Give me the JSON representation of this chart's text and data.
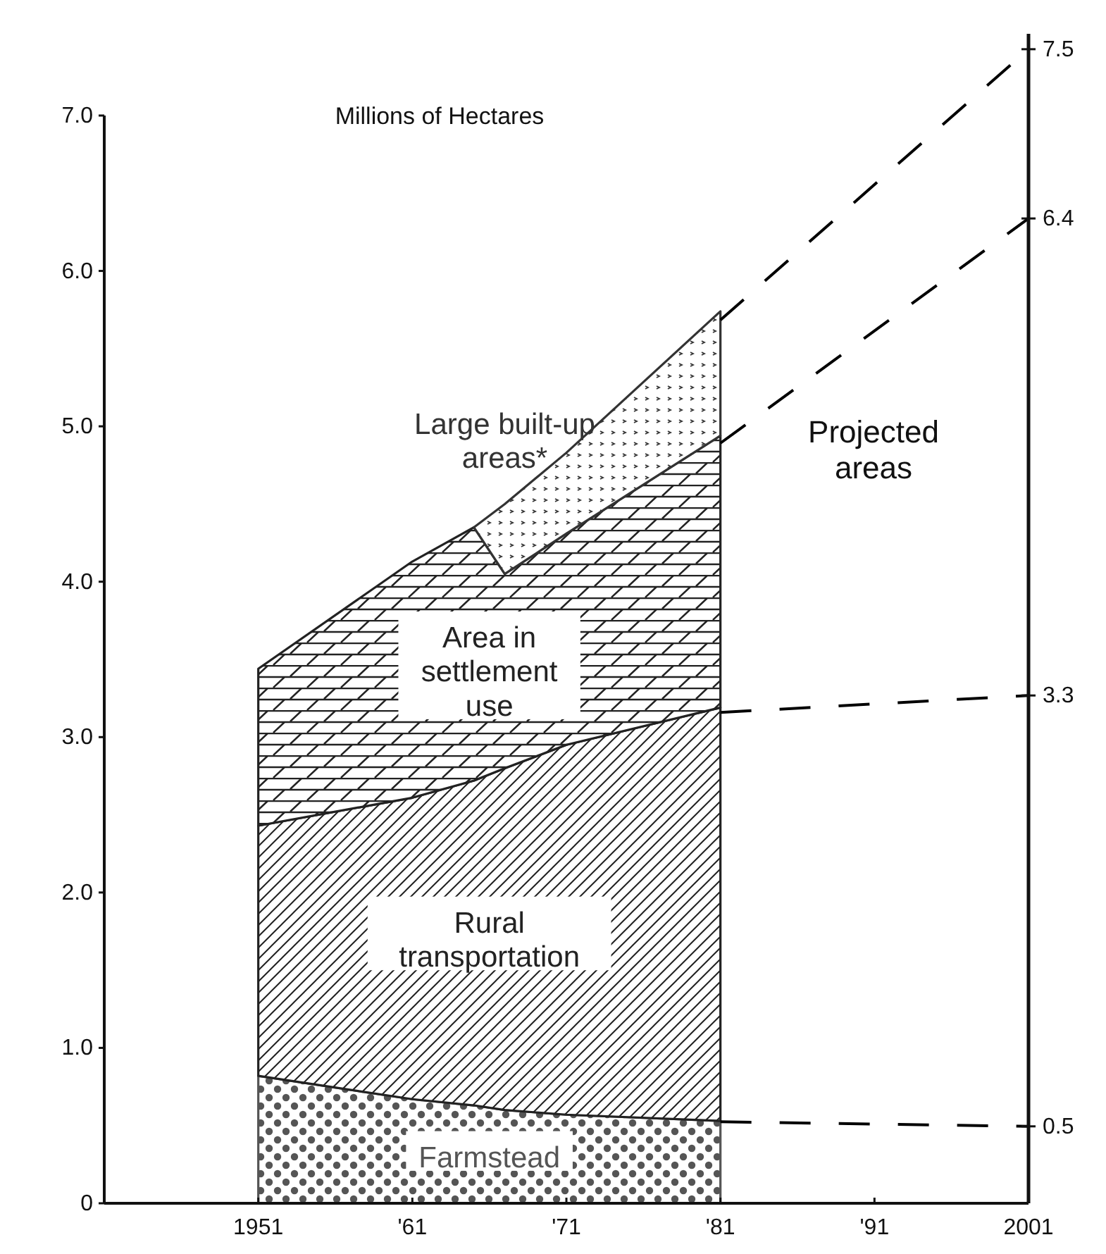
{
  "chart_data": {
    "type": "area",
    "stacked": true,
    "ylabel": "Millions of Hectares",
    "x": [
      1951,
      1961,
      1965,
      1967,
      1971,
      1981,
      2001
    ],
    "xlim": [
      1941,
      2001
    ],
    "xticks": [
      1951,
      {
        "value": 1961,
        "label": "'61"
      },
      {
        "value": 1971,
        "label": "'71"
      },
      {
        "value": 1981,
        "label": "'81"
      },
      {
        "value": 1991,
        "label": "'91"
      },
      2001
    ],
    "ylim": [
      0,
      7.0
    ],
    "yticks": [
      0,
      {
        "value": 1,
        "label": "1.0"
      },
      {
        "value": 2,
        "label": "2.0"
      },
      {
        "value": 3,
        "label": "3.0"
      },
      {
        "value": 4,
        "label": "4.0"
      },
      {
        "value": 5,
        "label": "5.0"
      },
      {
        "value": 6,
        "label": "6.0"
      },
      {
        "value": 7,
        "label": "7.0"
      }
    ],
    "y2lim": [
      0,
      7.6
    ],
    "y2ticks": [
      0.5,
      3.3,
      6.4,
      7.5
    ],
    "legend": false,
    "series": [
      {
        "name": "Farmstead",
        "color": "#555555",
        "values": [
          0.82,
          0.67,
          0.63,
          0.6,
          0.57,
          0.53,
          null
        ]
      },
      {
        "name": "Rural\ntransportation",
        "color": "#222222",
        "values": [
          1.61,
          1.94,
          2.09,
          2.2,
          2.38,
          2.66,
          null
        ]
      },
      {
        "name": "Area in\nsettlement\nuse",
        "color": "#222222",
        "values": [
          1.01,
          1.52,
          1.63,
          1.25,
          1.36,
          1.75,
          null
        ]
      },
      {
        "name": "Large built-up\nareas*",
        "color": "#333333",
        "values": [
          null,
          null,
          0,
          0.45,
          0.52,
          0.8,
          null
        ]
      },
      {
        "type": "line",
        "axis": "y2",
        "line_style": "dashed",
        "color": "#000000",
        "values": [
          null,
          null,
          null,
          null,
          null,
          0.53,
          0.5
        ]
      },
      {
        "type": "line",
        "axis": "y2",
        "line_style": "dashed",
        "color": "#000000",
        "values": [
          null,
          null,
          null,
          null,
          null,
          3.19,
          3.3
        ]
      },
      {
        "type": "line",
        "axis": "y2",
        "line_style": "dashed",
        "color": "#000000",
        "values": [
          null,
          null,
          null,
          null,
          null,
          4.94,
          6.4
        ]
      },
      {
        "type": "line",
        "axis": "y2",
        "line_style": "dashed",
        "color": "#000000",
        "values": [
          null,
          null,
          null,
          null,
          null,
          5.74,
          7.5
        ]
      }
    ],
    "annotations": [
      "Projected\nareas"
    ]
  }
}
